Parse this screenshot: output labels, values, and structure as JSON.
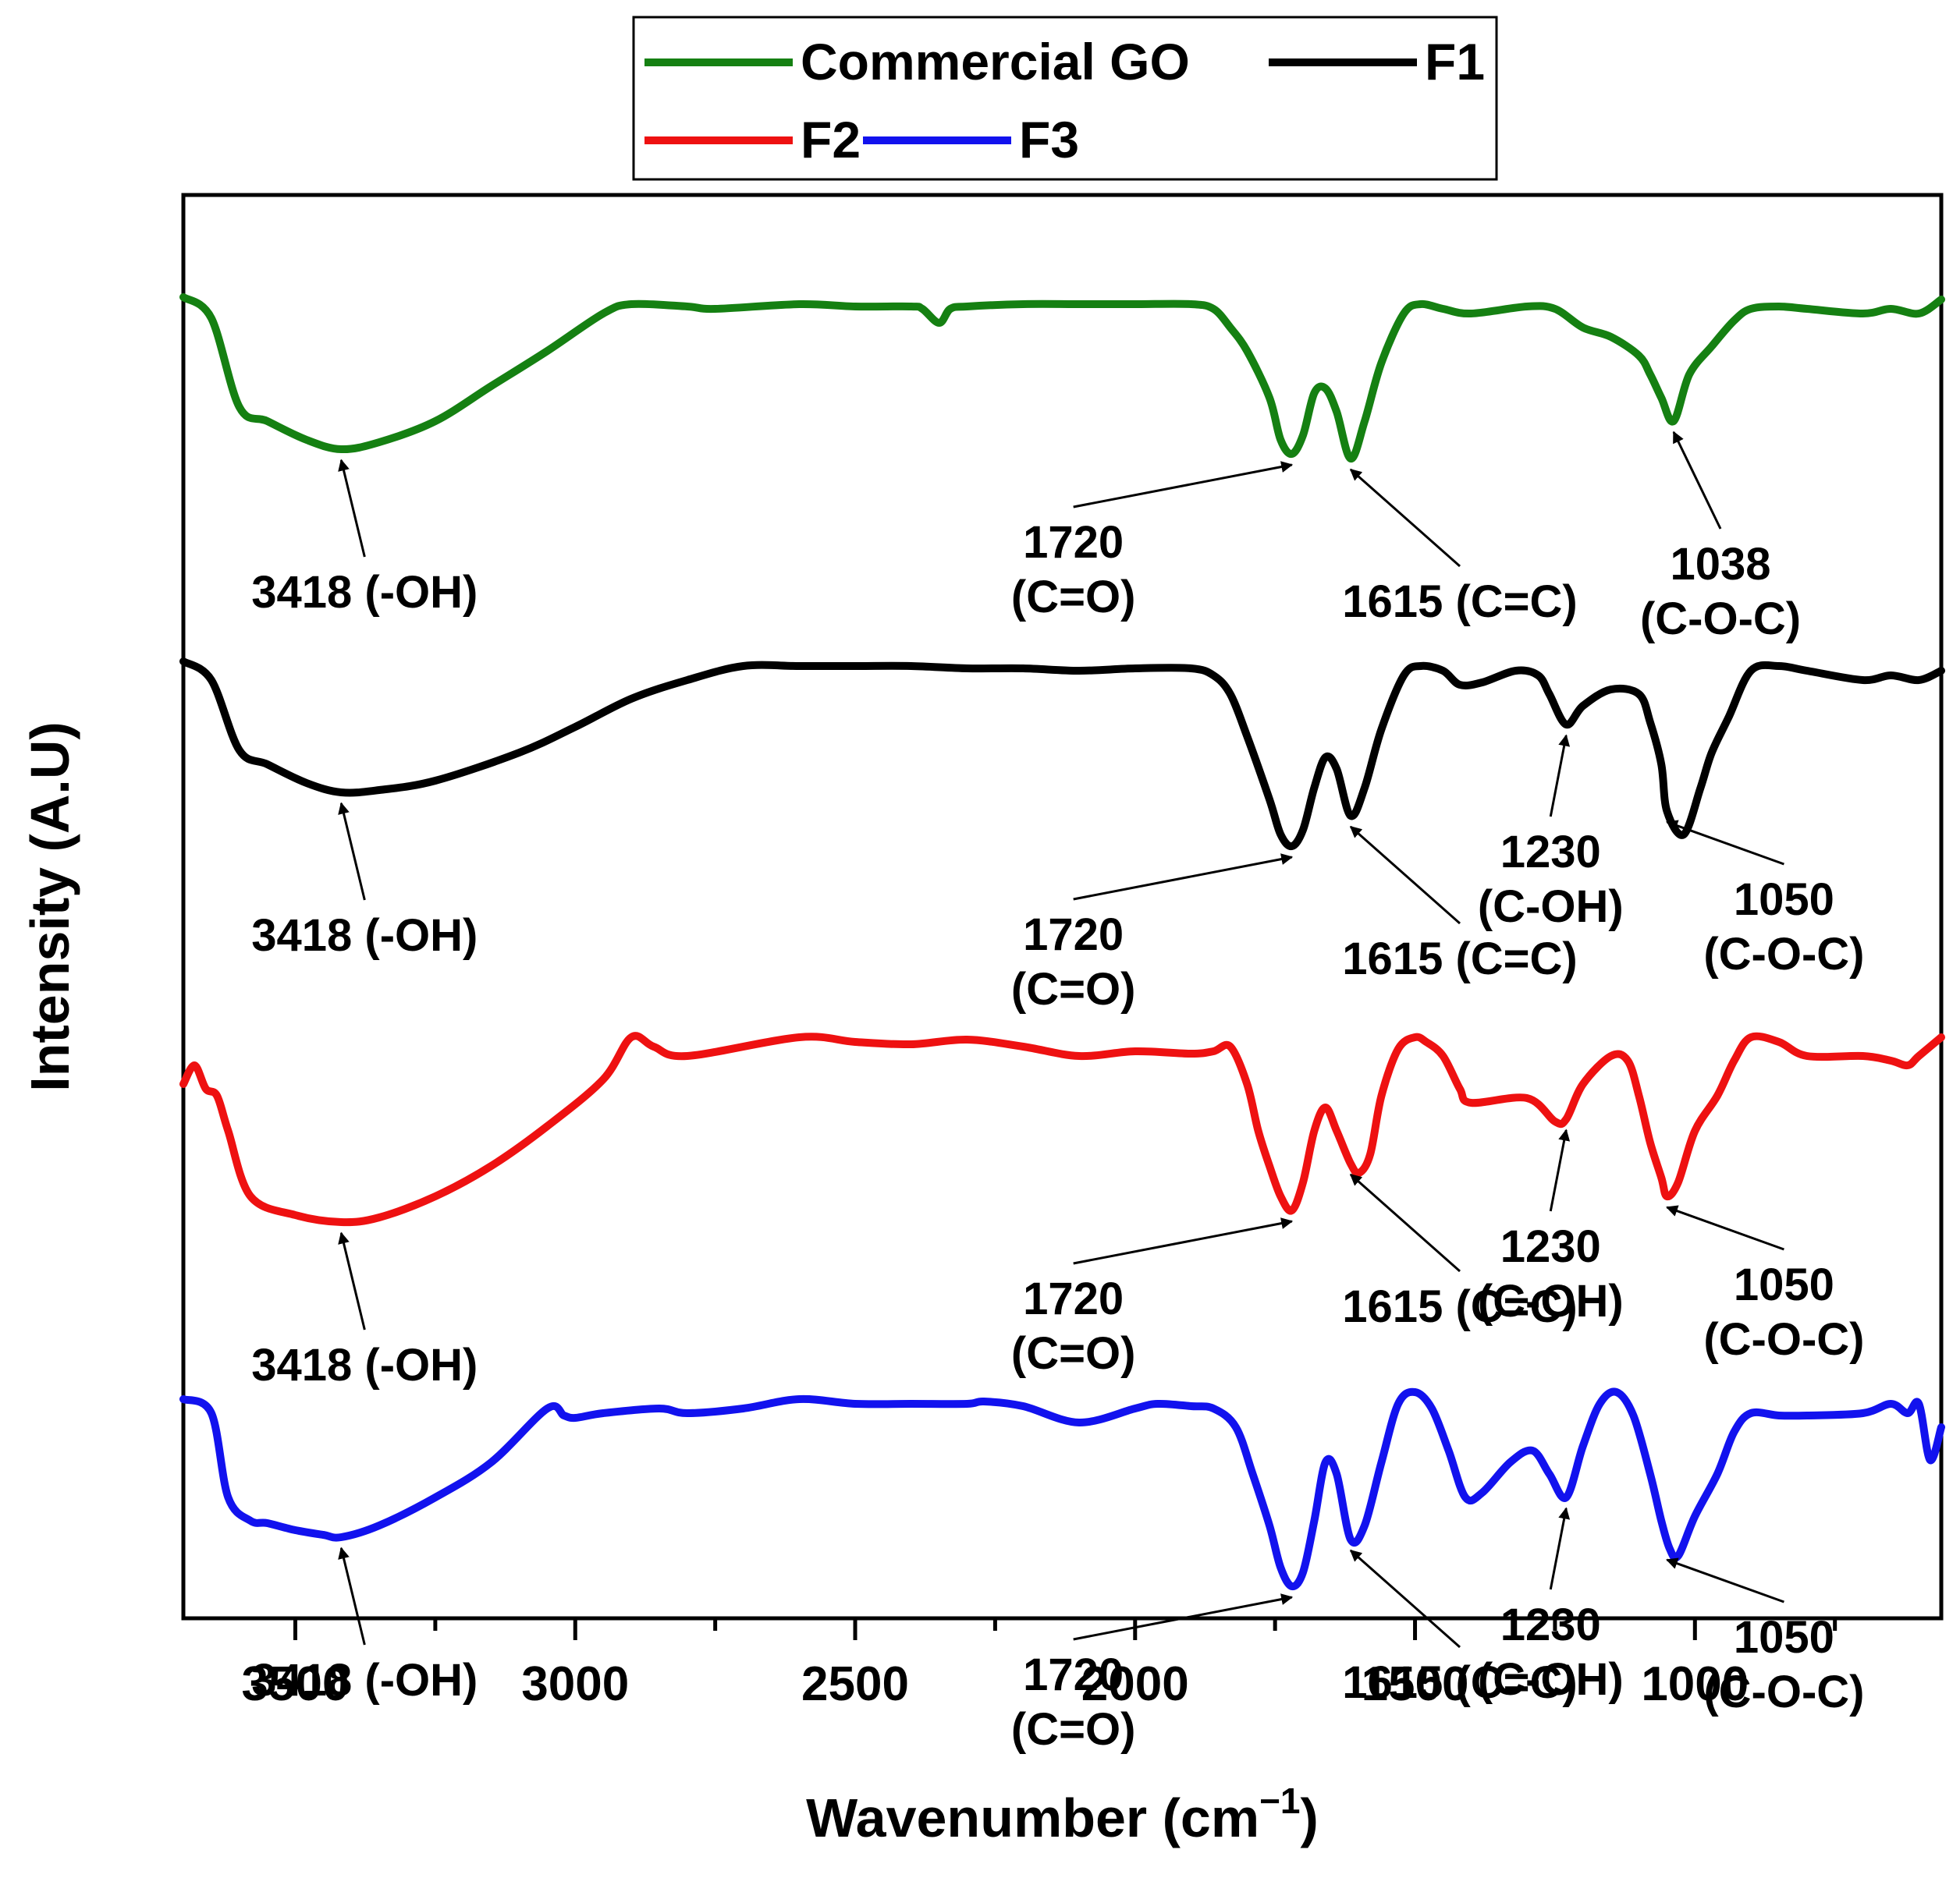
{
  "chart_data": {
    "type": "line",
    "title": "",
    "xlabel": "Wavenumber (cm",
    "xlabel_sup": "−1",
    "xlabel_close": ")",
    "ylabel": "Intensity (A.U)",
    "xlim": [
      3700,
      560
    ],
    "x_reversed": true,
    "xticks": [
      3500,
      3000,
      2500,
      2000,
      1500,
      1000
    ],
    "xtick_labels": [
      "3500",
      "3000",
      "2500",
      "2000",
      "1500",
      "1000"
    ],
    "yticks_visible": false,
    "legend_position": "top-center, above plot",
    "series": [
      {
        "name": "Commercial GO",
        "color": "#158012",
        "offset": 3,
        "x": [
          3700,
          3650,
          3600,
          3550,
          3480,
          3418,
          3350,
          3250,
          3150,
          3050,
          2950,
          2900,
          2800,
          2750,
          2600,
          2500,
          2400,
          2380,
          2350,
          2330,
          2300,
          2200,
          2100,
          2000,
          1900,
          1860,
          1830,
          1800,
          1760,
          1740,
          1720,
          1700,
          1680,
          1660,
          1640,
          1615,
          1590,
          1560,
          1520,
          1490,
          1450,
          1400,
          1300,
          1250,
          1200,
          1150,
          1100,
          1080,
          1060,
          1038,
          1010,
          970,
          930,
          900,
          850,
          800,
          700,
          650,
          600,
          560
        ],
        "values": [
          0.83,
          0.74,
          0.36,
          0.3,
          0.22,
          0.18,
          0.21,
          0.3,
          0.45,
          0.6,
          0.76,
          0.8,
          0.79,
          0.78,
          0.8,
          0.79,
          0.79,
          0.78,
          0.72,
          0.78,
          0.79,
          0.8,
          0.8,
          0.8,
          0.8,
          0.78,
          0.7,
          0.6,
          0.4,
          0.22,
          0.16,
          0.24,
          0.42,
          0.44,
          0.34,
          0.14,
          0.3,
          0.55,
          0.76,
          0.8,
          0.78,
          0.76,
          0.79,
          0.78,
          0.7,
          0.66,
          0.58,
          0.5,
          0.4,
          0.3,
          0.5,
          0.62,
          0.73,
          0.78,
          0.79,
          0.78,
          0.76,
          0.78,
          0.76,
          0.82
        ]
      },
      {
        "name": "F1",
        "color": "#000000",
        "offset": 2,
        "x": [
          3700,
          3650,
          3600,
          3550,
          3480,
          3418,
          3350,
          3250,
          3100,
          3000,
          2900,
          2800,
          2700,
          2600,
          2500,
          2400,
          2300,
          2200,
          2100,
          2000,
          1900,
          1860,
          1830,
          1800,
          1760,
          1740,
          1720,
          1700,
          1680,
          1660,
          1640,
          1615,
          1590,
          1560,
          1520,
          1490,
          1450,
          1420,
          1380,
          1320,
          1280,
          1260,
          1230,
          1200,
          1150,
          1100,
          1080,
          1060,
          1050,
          1020,
          990,
          970,
          940,
          900,
          850,
          800,
          700,
          650,
          600,
          560
        ],
        "values": [
          0.84,
          0.76,
          0.46,
          0.4,
          0.32,
          0.28,
          0.29,
          0.33,
          0.45,
          0.56,
          0.68,
          0.76,
          0.82,
          0.82,
          0.82,
          0.82,
          0.81,
          0.81,
          0.8,
          0.81,
          0.81,
          0.78,
          0.7,
          0.52,
          0.25,
          0.1,
          0.05,
          0.12,
          0.3,
          0.43,
          0.38,
          0.18,
          0.3,
          0.55,
          0.78,
          0.82,
          0.8,
          0.74,
          0.75,
          0.8,
          0.78,
          0.7,
          0.57,
          0.65,
          0.72,
          0.7,
          0.58,
          0.4,
          0.2,
          0.1,
          0.3,
          0.45,
          0.6,
          0.8,
          0.82,
          0.8,
          0.76,
          0.78,
          0.76,
          0.8
        ]
      },
      {
        "name": "F2",
        "color": "#ee1111",
        "offset": 1,
        "x": [
          3700,
          3680,
          3660,
          3640,
          3620,
          3580,
          3500,
          3418,
          3350,
          3250,
          3150,
          3050,
          2950,
          2900,
          2860,
          2800,
          2600,
          2500,
          2400,
          2300,
          2200,
          2100,
          2000,
          1900,
          1860,
          1830,
          1800,
          1780,
          1760,
          1740,
          1720,
          1700,
          1680,
          1660,
          1640,
          1615,
          1600,
          1580,
          1560,
          1530,
          1500,
          1480,
          1450,
          1420,
          1400,
          1300,
          1250,
          1230,
          1200,
          1150,
          1120,
          1100,
          1080,
          1060,
          1050,
          1030,
          1000,
          960,
          930,
          900,
          850,
          800,
          700,
          650,
          620,
          600,
          560
        ],
        "values": [
          0.6,
          0.68,
          0.58,
          0.55,
          0.4,
          0.12,
          0.04,
          0.01,
          0.03,
          0.12,
          0.25,
          0.42,
          0.62,
          0.8,
          0.76,
          0.72,
          0.8,
          0.78,
          0.77,
          0.79,
          0.76,
          0.72,
          0.74,
          0.73,
          0.74,
          0.76,
          0.6,
          0.4,
          0.25,
          0.12,
          0.06,
          0.18,
          0.4,
          0.5,
          0.4,
          0.26,
          0.22,
          0.3,
          0.55,
          0.75,
          0.8,
          0.78,
          0.72,
          0.58,
          0.52,
          0.54,
          0.44,
          0.45,
          0.6,
          0.72,
          0.7,
          0.55,
          0.35,
          0.2,
          0.12,
          0.18,
          0.4,
          0.55,
          0.7,
          0.8,
          0.78,
          0.72,
          0.72,
          0.7,
          0.68,
          0.72,
          0.8
        ]
      },
      {
        "name": "F3",
        "color": "#1212ee",
        "offset": 0,
        "x": [
          3700,
          3650,
          3620,
          3580,
          3550,
          3500,
          3450,
          3418,
          3350,
          3250,
          3150,
          3050,
          3020,
          3000,
          2950,
          2850,
          2800,
          2700,
          2600,
          2500,
          2400,
          2300,
          2270,
          2200,
          2100,
          2000,
          1960,
          1900,
          1860,
          1820,
          1790,
          1760,
          1740,
          1720,
          1700,
          1680,
          1660,
          1640,
          1615,
          1590,
          1560,
          1530,
          1500,
          1470,
          1440,
          1410,
          1380,
          1330,
          1290,
          1260,
          1230,
          1200,
          1170,
          1140,
          1110,
          1080,
          1060,
          1045,
          1030,
          1000,
          960,
          930,
          900,
          850,
          800,
          700,
          650,
          620,
          600,
          580,
          560
        ],
        "values": [
          0.82,
          0.76,
          0.4,
          0.3,
          0.29,
          0.26,
          0.24,
          0.23,
          0.28,
          0.4,
          0.55,
          0.78,
          0.75,
          0.74,
          0.76,
          0.78,
          0.76,
          0.78,
          0.82,
          0.8,
          0.8,
          0.8,
          0.81,
          0.79,
          0.72,
          0.78,
          0.8,
          0.79,
          0.78,
          0.7,
          0.5,
          0.28,
          0.1,
          0.02,
          0.08,
          0.3,
          0.55,
          0.5,
          0.22,
          0.28,
          0.55,
          0.8,
          0.85,
          0.78,
          0.6,
          0.4,
          0.42,
          0.55,
          0.6,
          0.5,
          0.4,
          0.62,
          0.8,
          0.85,
          0.75,
          0.5,
          0.3,
          0.18,
          0.15,
          0.32,
          0.5,
          0.68,
          0.76,
          0.75,
          0.75,
          0.76,
          0.8,
          0.76,
          0.8,
          0.56,
          0.7
        ]
      }
    ],
    "annotations": [
      {
        "series": "Commercial GO",
        "lines": [
          "3418 (-OH)"
        ],
        "x": 3418
      },
      {
        "series": "Commercial GO",
        "lines": [
          "1720",
          "(C=O)"
        ],
        "x": 1720
      },
      {
        "series": "Commercial GO",
        "lines": [
          "1615 (C=C)"
        ],
        "x": 1615
      },
      {
        "series": "Commercial GO",
        "lines": [
          "1038",
          "(C-O-C)"
        ],
        "x": 1038
      },
      {
        "series": "F1",
        "lines": [
          "3418 (-OH)"
        ],
        "x": 3418
      },
      {
        "series": "F1",
        "lines": [
          "1720",
          "(C=O)"
        ],
        "x": 1720
      },
      {
        "series": "F1",
        "lines": [
          "1615 (C=C)"
        ],
        "x": 1615
      },
      {
        "series": "F1",
        "lines": [
          "1230",
          "(C-OH)"
        ],
        "x": 1230
      },
      {
        "series": "F1",
        "lines": [
          "1050",
          "(C-O-C)"
        ],
        "x": 1050
      },
      {
        "series": "F2",
        "lines": [
          "3418 (-OH)"
        ],
        "x": 3418
      },
      {
        "series": "F2",
        "lines": [
          "1720",
          "(C=O)"
        ],
        "x": 1720
      },
      {
        "series": "F2",
        "lines": [
          "1615 (C=C)"
        ],
        "x": 1615
      },
      {
        "series": "F2",
        "lines": [
          "1230",
          "(C-OH)"
        ],
        "x": 1230
      },
      {
        "series": "F2",
        "lines": [
          "1050",
          "(C-O-C)"
        ],
        "x": 1050
      },
      {
        "series": "F3",
        "lines": [
          "3418 (-OH)"
        ],
        "x": 3418
      },
      {
        "series": "F3",
        "lines": [
          "1720",
          "(C=O)"
        ],
        "x": 1720
      },
      {
        "series": "F3",
        "lines": [
          "1615 (C=C)"
        ],
        "x": 1615
      },
      {
        "series": "F3",
        "lines": [
          "1230",
          "(C-OH)"
        ],
        "x": 1230
      },
      {
        "series": "F3",
        "lines": [
          "1050",
          "(C-O-C)"
        ],
        "x": 1050
      }
    ]
  }
}
